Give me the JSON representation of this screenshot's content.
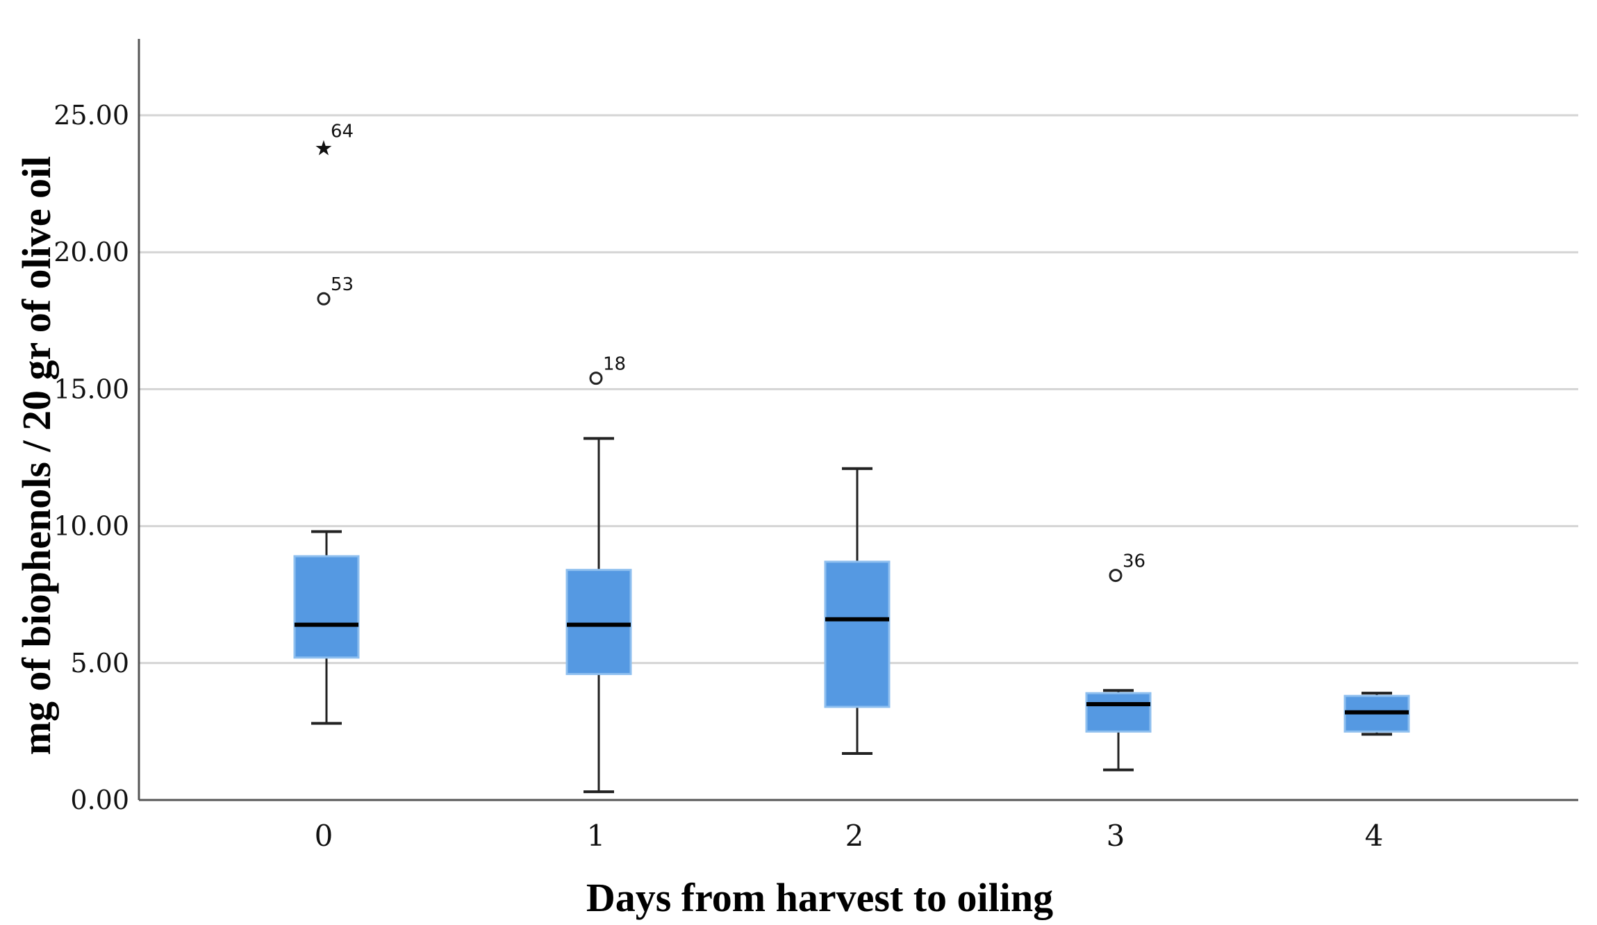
{
  "chart_data": {
    "type": "boxplot",
    "title": "",
    "xlabel": "Days from harvest to oiling",
    "ylabel": "mg of biophenols / 20 gr of olive oil",
    "ylim": [
      0,
      27.5
    ],
    "yticks": [
      0,
      5,
      10,
      15,
      20,
      25
    ],
    "ytick_labels": [
      "0.00",
      "5.00",
      "10.00",
      "15.00",
      "20.00",
      "25.00"
    ],
    "grid": true,
    "categories": [
      "0",
      "1",
      "2",
      "3",
      "4"
    ],
    "boxes": [
      {
        "category": "0",
        "whisker_low": 2.8,
        "q1": 5.2,
        "median": 6.4,
        "q3": 8.9,
        "whisker_high": 9.8
      },
      {
        "category": "1",
        "whisker_low": 0.3,
        "q1": 4.6,
        "median": 6.4,
        "q3": 8.4,
        "whisker_high": 13.2
      },
      {
        "category": "2",
        "whisker_low": 1.7,
        "q1": 3.4,
        "median": 6.6,
        "q3": 8.7,
        "whisker_high": 12.1
      },
      {
        "category": "3",
        "whisker_low": 1.1,
        "q1": 2.5,
        "median": 3.5,
        "q3": 3.9,
        "whisker_high": 4.0
      },
      {
        "category": "4",
        "whisker_low": 2.4,
        "q1": 2.5,
        "median": 3.2,
        "q3": 3.8,
        "whisker_high": 3.9
      }
    ],
    "outliers": [
      {
        "category": "0",
        "value": 23.9,
        "label": "64",
        "marker": "star"
      },
      {
        "category": "0",
        "value": 18.3,
        "label": "53",
        "marker": "circle"
      },
      {
        "category": "1",
        "value": 15.4,
        "label": "18",
        "marker": "circle"
      },
      {
        "category": "3",
        "value": 8.2,
        "label": "36",
        "marker": "circle"
      }
    ],
    "colors": {
      "box_fill": "#5599e2",
      "box_edge": "#8ebfef",
      "median": "#000000",
      "whisker": "#222222",
      "grid": "#d4d4d4",
      "axis": "#555555"
    }
  }
}
